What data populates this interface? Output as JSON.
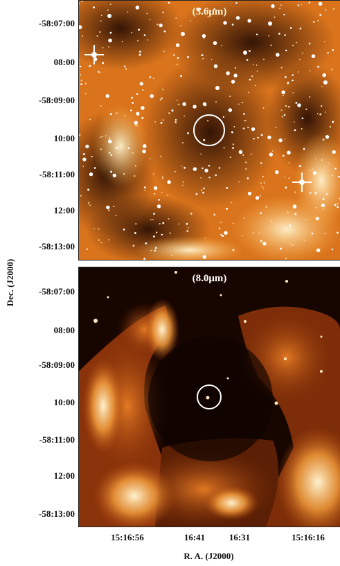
{
  "panels": [
    {
      "id": "top",
      "band_label": "(3.6μm)",
      "colors": {
        "background": "#e58a25",
        "dark": "#3a1505",
        "bright": "#fff2c9"
      },
      "y_ticks": [
        "-58:07:00",
        "08:00",
        "-58:09:00",
        "10:00",
        "-58:11:00",
        "12:00",
        "-58:13:00"
      ]
    },
    {
      "id": "bottom",
      "band_label": "(8.0μm)",
      "colors": {
        "background": "#2a0b02",
        "dark": "#120400",
        "bright": "#ffd79a"
      },
      "y_ticks": [
        "-58:07:00",
        "08:00",
        "-58:09:00",
        "10:00",
        "-58:11:00",
        "12:00",
        "-58:13:00"
      ]
    }
  ],
  "x_ticks": [
    "15:16:56",
    "16:41",
    "16:31",
    "15:16:16"
  ],
  "axis_labels": {
    "y": "Dec. (J2000)",
    "x": "R. A. (J2000)"
  }
}
